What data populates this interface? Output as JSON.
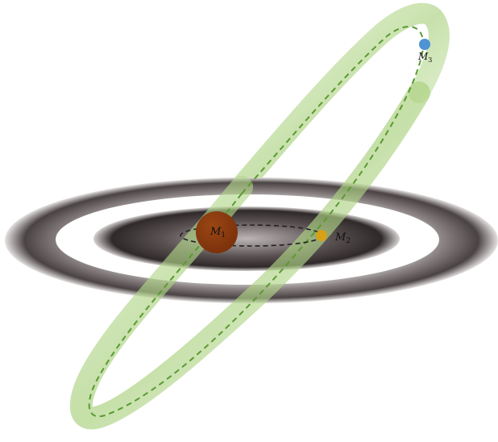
{
  "bodies": [
    {
      "id": "M1",
      "base": "M",
      "sub": "1",
      "color": "#86380d",
      "label_color": "#ffffff"
    },
    {
      "id": "M2",
      "base": "M",
      "sub": "2",
      "color": "#d6a017",
      "label_color": "#111111"
    },
    {
      "id": "M3",
      "base": "M",
      "sub": "3",
      "color": "#4e93d4",
      "label_color": "#111111"
    }
  ],
  "colors": {
    "disk_dark": "#2a2424",
    "disk_light": "#f0eeee",
    "outer_orbit_band": "#a8cf7c",
    "outer_orbit_path": "#5a9a32",
    "inner_orbit_path": "#222222"
  }
}
